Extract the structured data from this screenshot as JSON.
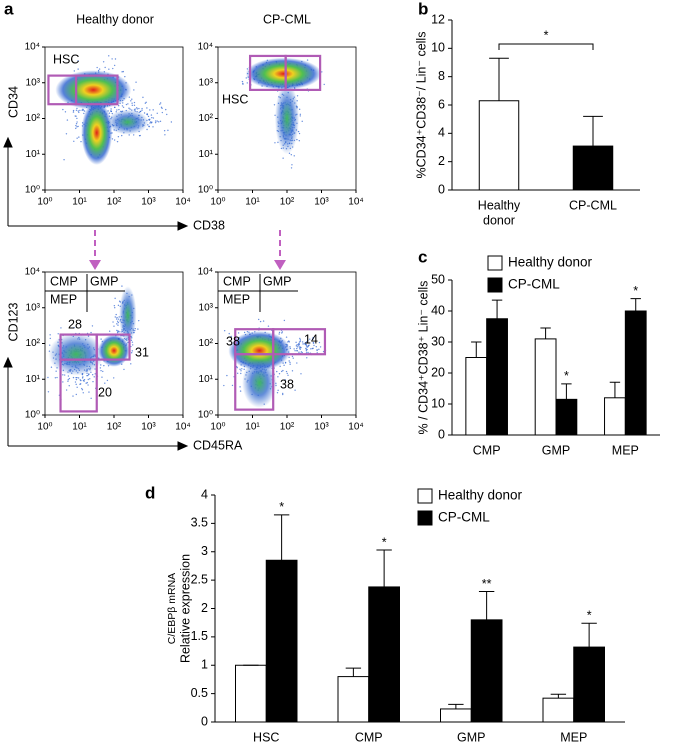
{
  "panel_labels": [
    "a",
    "b",
    "c",
    "d"
  ],
  "flow": {
    "column_titles": [
      "Healthy donor",
      "CP-CML"
    ],
    "axis_labels": {
      "top_y": "CD34",
      "top_x": "CD38",
      "bottom_y": "CD123",
      "bottom_x": "CD45RA"
    },
    "ticks": [
      "10⁰",
      "10¹",
      "10²",
      "10³",
      "10⁴"
    ],
    "plots": [
      {
        "gates": [
          "HSC"
        ]
      },
      {
        "gates": [
          "HSC"
        ]
      },
      {
        "gates": [
          "CMP",
          "GMP",
          "MEP",
          "28",
          "31",
          "20"
        ]
      },
      {
        "gates": [
          "CMP",
          "GMP",
          "MEP",
          "38",
          "14",
          "38"
        ]
      }
    ]
  },
  "chart_data": [
    {
      "type": "bar",
      "y_label": "%CD34⁺CD38⁻/ Lin⁻ cells",
      "categories": [
        [
          "Healthy",
          "donor"
        ],
        "CP-CML"
      ],
      "values": [
        6.3,
        3.1
      ],
      "errors": [
        3.0,
        2.1
      ],
      "colors": [
        "#ffffff",
        "#000000"
      ],
      "annotation": "*",
      "ylim": [
        0,
        12
      ],
      "yticks": [
        0,
        2,
        4,
        6,
        8,
        10,
        12
      ]
    },
    {
      "type": "bar",
      "y_label": "% / CD34⁺CD38⁺ Lin⁻ cells",
      "categories": [
        "CMP",
        "GMP",
        "MEP"
      ],
      "series": [
        {
          "name": "Healthy donor",
          "color": "#ffffff",
          "values": [
            25,
            31,
            12
          ],
          "errors": [
            5,
            3.5,
            5
          ]
        },
        {
          "name": "CP-CML",
          "color": "#000000",
          "values": [
            37.5,
            11.5,
            40
          ],
          "errors": [
            6,
            5,
            4
          ],
          "annotations": [
            null,
            "*",
            "*"
          ]
        }
      ],
      "ylim": [
        0,
        50
      ],
      "yticks": [
        0,
        10,
        20,
        30,
        40,
        50
      ]
    },
    {
      "type": "bar",
      "y_label": [
        "C/EBPβ mRNA",
        "Relative expression"
      ],
      "categories": [
        "HSC",
        "CMP",
        "GMP",
        "MEP"
      ],
      "series": [
        {
          "name": "Healthy donor",
          "color": "#ffffff",
          "values": [
            1,
            0.8,
            0.23,
            0.42
          ],
          "errors": [
            0,
            0.15,
            0.08,
            0.07
          ]
        },
        {
          "name": "CP-CML",
          "color": "#000000",
          "values": [
            2.85,
            2.38,
            1.8,
            1.32
          ],
          "errors": [
            0.8,
            0.65,
            0.5,
            0.42
          ],
          "annotations": [
            "*",
            "*",
            "**",
            "*"
          ]
        }
      ],
      "ylim": [
        0,
        4
      ],
      "yticks": [
        0,
        0.5,
        1,
        1.5,
        2,
        2.5,
        3,
        3.5,
        4
      ]
    }
  ]
}
